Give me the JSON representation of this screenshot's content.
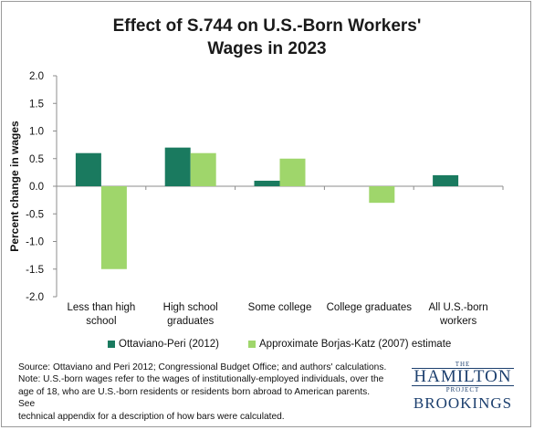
{
  "chart_data": {
    "type": "bar",
    "title_lines": [
      "Effect of S.744 on U.S.-Born Workers'",
      "Wages in 2023"
    ],
    "ylabel": "Percent change in wages",
    "ylim": [
      -2.0,
      2.0
    ],
    "yticks": [
      "2.0",
      "1.5",
      "1.0",
      "0.5",
      "0.0",
      "-0.5",
      "-1.0",
      "-1.5",
      "-2.0"
    ],
    "ytick_values": [
      2.0,
      1.5,
      1.0,
      0.5,
      0.0,
      -0.5,
      -1.0,
      -1.5,
      -2.0
    ],
    "categories": [
      [
        "Less than high",
        "school"
      ],
      [
        "High school",
        "graduates"
      ],
      [
        "Some college"
      ],
      [
        "College graduates"
      ],
      [
        "All U.S.-born",
        "workers"
      ]
    ],
    "series": [
      {
        "name": "Ottaviano-Peri (2012)",
        "color": "#1a7a5f",
        "values": [
          0.6,
          0.7,
          0.1,
          null,
          0.2
        ]
      },
      {
        "name": "Approximate Borjas-Katz (2007) estimate",
        "color": "#9fd66b",
        "values": [
          -1.5,
          0.6,
          0.5,
          -0.3,
          null
        ]
      }
    ],
    "grid": false,
    "legend_position": "bottom"
  },
  "notes": [
    "Source: Ottaviano and Peri 2012; Congressional Budget Office; and authors' calculations.",
    "Note: U.S.-born wages refer to the wages of institutionally-employed individuals, over the",
    "age of 18, who are U.S.-born residents or residents born abroad to American parents. See",
    "technical appendix for a description of how bars were calculated."
  ],
  "logos": {
    "hamilton_the": "THE",
    "hamilton_name": "HAMILTON",
    "hamilton_project": "PROJECT",
    "brookings": "BROOKINGS"
  }
}
